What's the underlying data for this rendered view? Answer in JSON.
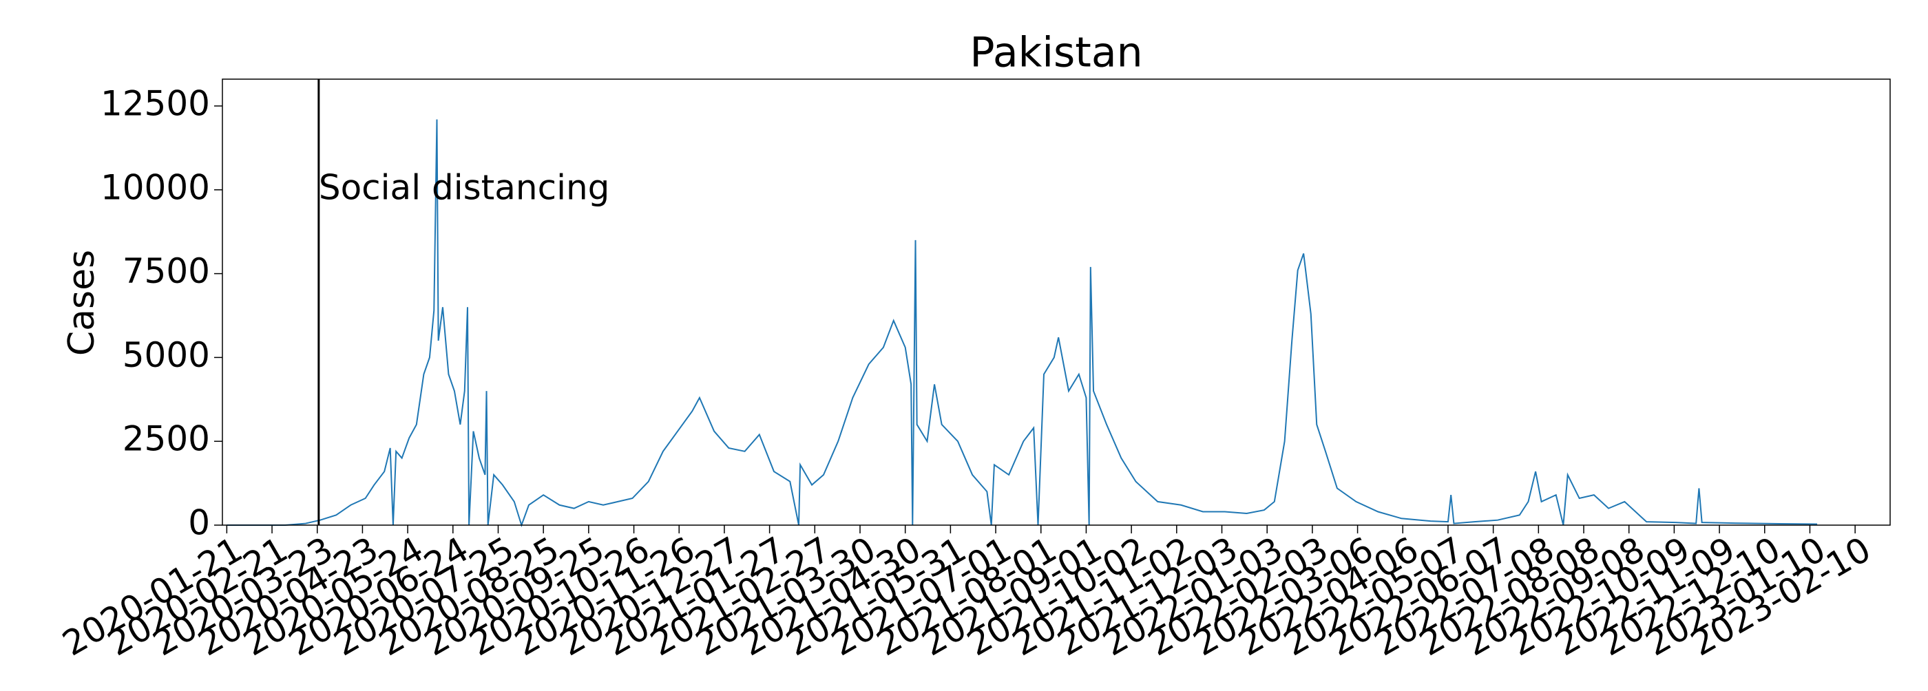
{
  "chart_data": {
    "type": "line",
    "title": "Pakistan",
    "ylabel": "Cases",
    "color": "#1f77b4",
    "xlim": [
      "2020-01-18",
      "2023-03-06"
    ],
    "ylim": [
      0,
      13300
    ],
    "yticks": [
      0,
      2500,
      5000,
      7500,
      10000,
      12500
    ],
    "xticks": [
      "2020-01-21",
      "2020-02-21",
      "2020-03-23",
      "2020-04-23",
      "2020-05-24",
      "2020-06-24",
      "2020-07-25",
      "2020-08-25",
      "2020-09-25",
      "2020-10-26",
      "2020-11-26",
      "2020-12-27",
      "2021-01-27",
      "2021-02-27",
      "2021-03-30",
      "2021-04-30",
      "2021-05-31",
      "2021-07-01",
      "2021-08-01",
      "2021-09-01",
      "2021-10-02",
      "2021-11-02",
      "2021-12-03",
      "2022-01-03",
      "2022-02-03",
      "2022-03-06",
      "2022-04-06",
      "2022-05-07",
      "2022-06-07",
      "2022-07-08",
      "2022-08-08",
      "2022-09-08",
      "2022-10-09",
      "2022-11-09",
      "2022-12-10",
      "2023-01-10",
      "2023-02-10"
    ],
    "annotations": [
      {
        "x": "2020-03-24",
        "text": "Social distancing"
      }
    ],
    "x": [
      "2020-01-21",
      "2020-03-01",
      "2020-03-15",
      "2020-03-25",
      "2020-04-05",
      "2020-04-15",
      "2020-04-25",
      "2020-05-01",
      "2020-05-08",
      "2020-05-12",
      "2020-05-14",
      "2020-05-16",
      "2020-05-20",
      "2020-05-25",
      "2020-05-30",
      "2020-06-04",
      "2020-06-08",
      "2020-06-11",
      "2020-06-13",
      "2020-06-14",
      "2020-06-17",
      "2020-06-21",
      "2020-06-25",
      "2020-06-29",
      "2020-07-02",
      "2020-07-04",
      "2020-07-05",
      "2020-07-08",
      "2020-07-12",
      "2020-07-16",
      "2020-07-17",
      "2020-07-18",
      "2020-07-22",
      "2020-07-28",
      "2020-08-05",
      "2020-08-10",
      "2020-08-15",
      "2020-08-25",
      "2020-09-05",
      "2020-09-15",
      "2020-09-25",
      "2020-10-05",
      "2020-10-15",
      "2020-10-25",
      "2020-11-05",
      "2020-11-15",
      "2020-11-25",
      "2020-12-05",
      "2020-12-10",
      "2020-12-20",
      "2020-12-30",
      "2021-01-10",
      "2021-01-20",
      "2021-01-30",
      "2021-02-10",
      "2021-02-16",
      "2021-02-17",
      "2021-02-25",
      "2021-03-05",
      "2021-03-15",
      "2021-03-25",
      "2021-04-05",
      "2021-04-15",
      "2021-04-22",
      "2021-04-30",
      "2021-05-04",
      "2021-05-05",
      "2021-05-07",
      "2021-05-08",
      "2021-05-15",
      "2021-05-20",
      "2021-05-25",
      "2021-06-05",
      "2021-06-15",
      "2021-06-25",
      "2021-06-28",
      "2021-06-30",
      "2021-07-10",
      "2021-07-20",
      "2021-07-27",
      "2021-07-30",
      "2021-08-03",
      "2021-08-10",
      "2021-08-13",
      "2021-08-20",
      "2021-08-27",
      "2021-09-01",
      "2021-09-03",
      "2021-09-04",
      "2021-09-06",
      "2021-09-15",
      "2021-09-25",
      "2021-10-05",
      "2021-10-20",
      "2021-11-05",
      "2021-11-20",
      "2021-12-05",
      "2021-12-20",
      "2022-01-01",
      "2022-01-08",
      "2022-01-15",
      "2022-01-20",
      "2022-01-24",
      "2022-01-28",
      "2022-02-02",
      "2022-02-06",
      "2022-02-12",
      "2022-02-20",
      "2022-03-05",
      "2022-03-20",
      "2022-04-05",
      "2022-04-25",
      "2022-05-07",
      "2022-05-09",
      "2022-05-11",
      "2022-05-25",
      "2022-06-10",
      "2022-06-25",
      "2022-07-01",
      "2022-07-06",
      "2022-07-10",
      "2022-07-20",
      "2022-07-25",
      "2022-07-28",
      "2022-08-05",
      "2022-08-15",
      "2022-08-25",
      "2022-09-05",
      "2022-09-20",
      "2022-10-10",
      "2022-10-24",
      "2022-10-26",
      "2022-10-28",
      "2022-11-20",
      "2022-12-20",
      "2023-01-15"
    ],
    "values": [
      0,
      0,
      50,
      150,
      300,
      600,
      800,
      1200,
      1600,
      2300,
      0,
      2200,
      2000,
      2600,
      3000,
      4500,
      5000,
      6400,
      12100,
      5500,
      6500,
      4500,
      4000,
      3000,
      4000,
      6500,
      0,
      2800,
      2000,
      1500,
      4000,
      0,
      1500,
      1200,
      700,
      0,
      600,
      900,
      600,
      500,
      700,
      600,
      700,
      800,
      1300,
      2200,
      2800,
      3400,
      3800,
      2800,
      2300,
      2200,
      2700,
      1600,
      1300,
      0,
      1800,
      1200,
      1500,
      2500,
      3800,
      4800,
      5300,
      6100,
      5300,
      4200,
      0,
      8500,
      3000,
      2500,
      4200,
      3000,
      2500,
      1500,
      1000,
      0,
      1800,
      1500,
      2500,
      2900,
      0,
      4500,
      5000,
      5600,
      4000,
      4500,
      3800,
      0,
      7700,
      4000,
      3000,
      2000,
      1300,
      700,
      600,
      400,
      400,
      350,
      450,
      700,
      2500,
      5500,
      7600,
      8100,
      6300,
      3000,
      2200,
      1100,
      700,
      400,
      200,
      120,
      100,
      900,
      50,
      100,
      150,
      300,
      700,
      1600,
      700,
      900,
      0,
      1500,
      800,
      900,
      500,
      700,
      100,
      80,
      50,
      1100,
      80,
      60,
      40,
      30
    ]
  }
}
